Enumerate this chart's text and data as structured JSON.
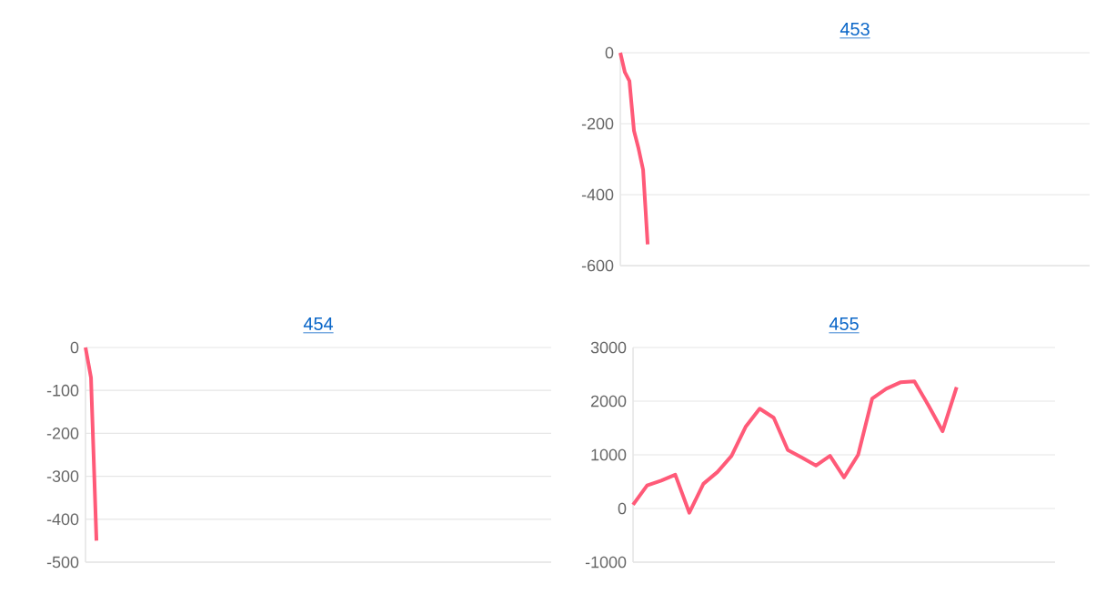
{
  "chart_data": [
    {
      "type": "line",
      "title": "453",
      "ylim": [
        -600,
        0
      ],
      "yticks": [
        -600,
        -400,
        -200,
        0
      ],
      "grid": "y",
      "tick_labels": "y",
      "marker": "none",
      "line_style": "solid",
      "categories": [
        null,
        null,
        null,
        null,
        null,
        null,
        null,
        null,
        null,
        null,
        null,
        null,
        null,
        null,
        null,
        null,
        null,
        null,
        null,
        null,
        null,
        null,
        null,
        null,
        null,
        null,
        null,
        null,
        null,
        null,
        null,
        null,
        null,
        null,
        null,
        null,
        null,
        null,
        null,
        null,
        null,
        null,
        null,
        null,
        null,
        null,
        null,
        null,
        null,
        null,
        null,
        null,
        null,
        null,
        null,
        null,
        null,
        null,
        null,
        null,
        null,
        null,
        null,
        null,
        null,
        null,
        null,
        null,
        null,
        null,
        null,
        null,
        null,
        null,
        null,
        null,
        null,
        null,
        null,
        null,
        null,
        null,
        null,
        null,
        null,
        null,
        null,
        null,
        null,
        null,
        null,
        null,
        null,
        null,
        null,
        null,
        null,
        null,
        null,
        null,
        null,
        null,
        null,
        null
      ],
      "series": [
        {
          "color": "#ff5a78",
          "values": [
            0,
            -55,
            -80,
            -220,
            -270,
            -330,
            -540,
            null,
            null,
            null,
            null,
            null,
            null,
            null,
            null,
            null,
            null,
            null,
            null,
            null,
            null,
            null,
            null,
            null,
            null,
            null,
            null,
            null,
            null,
            null,
            null,
            null,
            null,
            null,
            null,
            null,
            null,
            null,
            null,
            null,
            null,
            null,
            null,
            null,
            null,
            null,
            null,
            null,
            null,
            null,
            null,
            null,
            null,
            null,
            null,
            null,
            null,
            null,
            null,
            null,
            null,
            null,
            null,
            null,
            null,
            null,
            null,
            null,
            null,
            null,
            null,
            null,
            null,
            null,
            null,
            null,
            null,
            null,
            null,
            null,
            null,
            null,
            null,
            null,
            null,
            null,
            null,
            null,
            null,
            null,
            null,
            null,
            null,
            null,
            null,
            null,
            null,
            null,
            null,
            null,
            null,
            null,
            null,
            null
          ]
        }
      ]
    },
    {
      "type": "line",
      "title": "454",
      "ylim": [
        -500,
        0
      ],
      "yticks": [
        -500,
        -400,
        -300,
        -200,
        -100,
        0
      ],
      "grid": "y",
      "tick_labels": "y",
      "marker": "none",
      "line_style": "solid",
      "categories": [
        null,
        null,
        null,
        null,
        null,
        null,
        null,
        null,
        null,
        null,
        null,
        null,
        null,
        null,
        null,
        null,
        null,
        null,
        null,
        null,
        null,
        null,
        null,
        null,
        null,
        null,
        null,
        null,
        null,
        null,
        null,
        null,
        null,
        null,
        null,
        null,
        null,
        null,
        null,
        null,
        null,
        null,
        null,
        null,
        null,
        null,
        null,
        null,
        null,
        null,
        null,
        null,
        null,
        null,
        null,
        null,
        null,
        null,
        null,
        null,
        null,
        null,
        null,
        null,
        null,
        null,
        null,
        null,
        null,
        null,
        null,
        null,
        null,
        null,
        null,
        null,
        null,
        null,
        null,
        null,
        null,
        null,
        null,
        null,
        null,
        null
      ],
      "series": [
        {
          "color": "#ff5a78",
          "values": [
            0,
            -70,
            -450,
            null,
            null,
            null,
            null,
            null,
            null,
            null,
            null,
            null,
            null,
            null,
            null,
            null,
            null,
            null,
            null,
            null,
            null,
            null,
            null,
            null,
            null,
            null,
            null,
            null,
            null,
            null,
            null,
            null,
            null,
            null,
            null,
            null,
            null,
            null,
            null,
            null,
            null,
            null,
            null,
            null,
            null,
            null,
            null,
            null,
            null,
            null,
            null,
            null,
            null,
            null,
            null,
            null,
            null,
            null,
            null,
            null,
            null,
            null,
            null,
            null,
            null,
            null,
            null,
            null,
            null,
            null,
            null,
            null,
            null,
            null,
            null,
            null,
            null,
            null,
            null,
            null,
            null,
            null,
            null,
            null,
            null,
            null
          ]
        }
      ]
    },
    {
      "type": "line",
      "title": "455",
      "ylim": [
        -1000,
        3000
      ],
      "yticks": [
        -1000,
        0,
        1000,
        2000,
        3000
      ],
      "grid": "y",
      "tick_labels": "y",
      "marker": "none",
      "line_style": "solid",
      "categories": [
        null,
        null,
        null,
        null,
        null,
        null,
        null,
        null,
        null,
        null,
        null,
        null,
        null,
        null,
        null,
        null,
        null,
        null,
        null,
        null,
        null,
        null,
        null,
        null,
        null,
        null,
        null,
        null,
        null,
        null,
        null
      ],
      "series": [
        {
          "color": "#ff5a78",
          "values": [
            70,
            430,
            520,
            630,
            -80,
            460,
            680,
            980,
            1520,
            1860,
            1690,
            1090,
            950,
            800,
            980,
            580,
            1000,
            2050,
            2230,
            2350,
            2370,
            1920,
            1440,
            2260,
            null,
            null,
            null,
            null,
            null,
            null,
            null
          ]
        }
      ]
    }
  ]
}
